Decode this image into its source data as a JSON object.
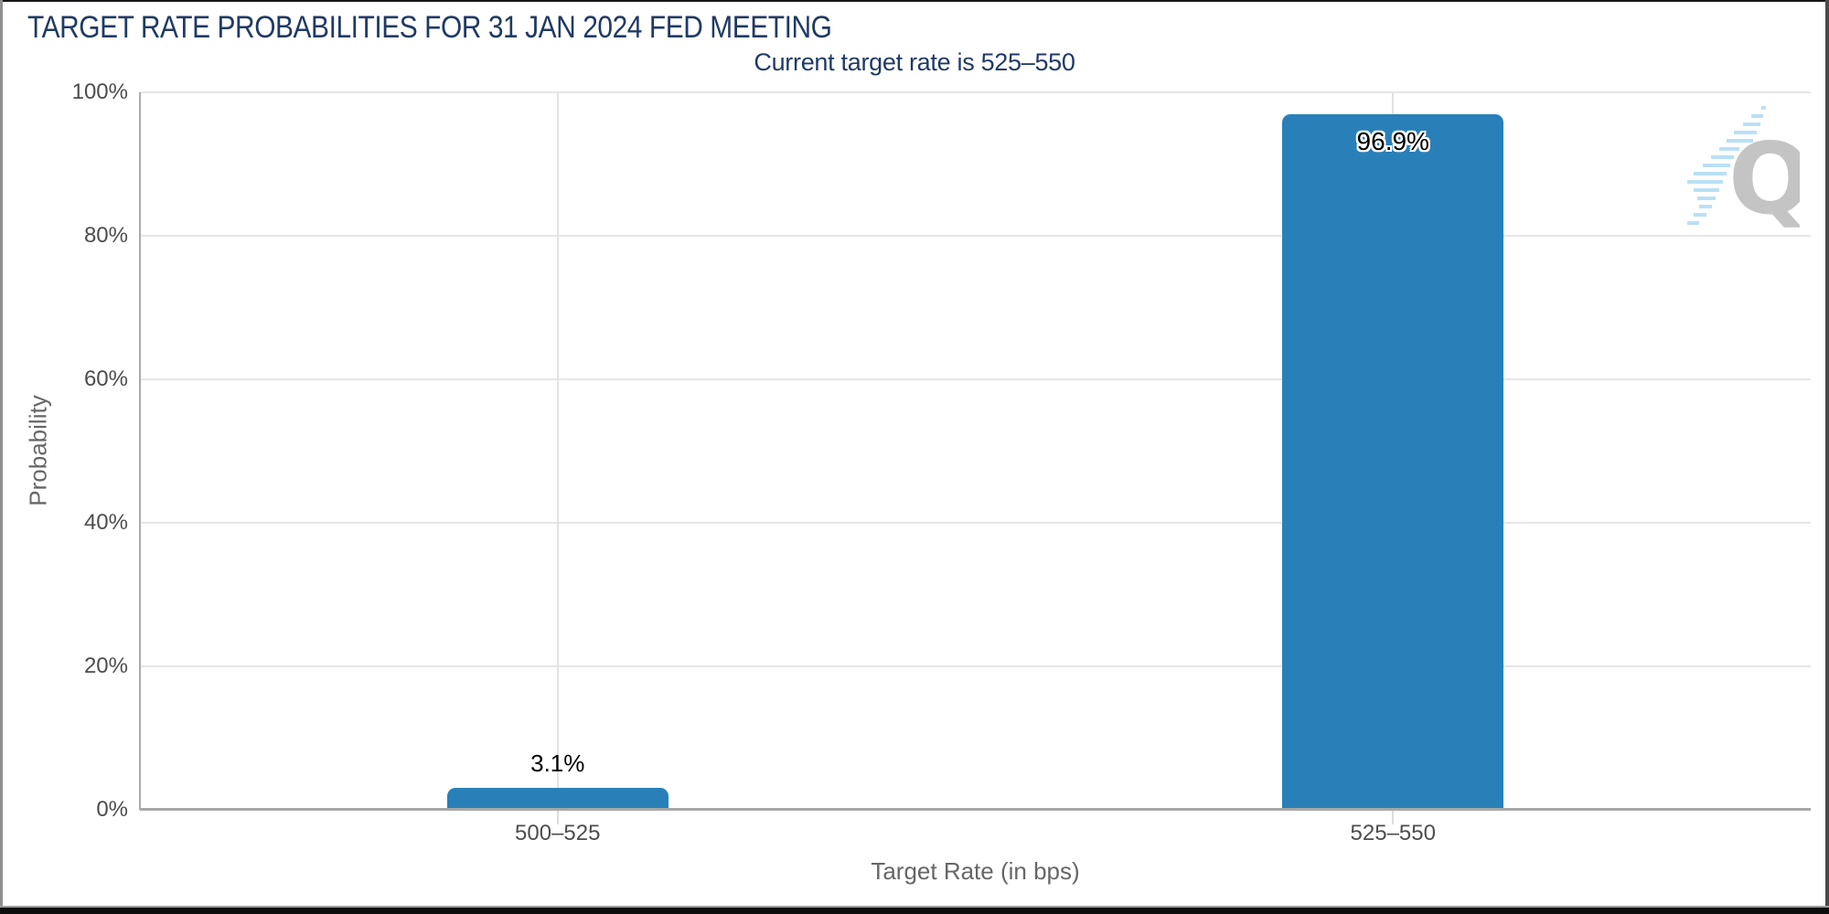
{
  "header": {
    "title": "TARGET RATE PROBABILITIES FOR 31 JAN 2024 FED MEETING",
    "subtitle": "Current target rate is 525–550"
  },
  "watermark": {
    "letter": "Q"
  },
  "colors": {
    "bar": "#2980b9",
    "title_text": "#203a64",
    "gridline": "#e6e6e6",
    "axis_line": "#a7a7a7",
    "tick_label": "#4d4d4d",
    "axis_title": "#666666",
    "watermark_gray": "#c4c4c4",
    "watermark_blue": "#b9e0f5"
  },
  "chart_data": {
    "type": "bar",
    "title": "TARGET RATE PROBABILITIES FOR 31 JAN 2024 FED MEETING",
    "subtitle": "Current target rate is 525–550",
    "categories": [
      "500–525",
      "525–550"
    ],
    "values": [
      3.1,
      96.9
    ],
    "value_labels": [
      "3.1%",
      "96.9%"
    ],
    "xlabel": "Target Rate (in bps)",
    "ylabel": "Probability",
    "ylim": [
      0,
      100
    ],
    "yticks": [
      0,
      20,
      40,
      60,
      80,
      100
    ],
    "ytick_labels": [
      "0%",
      "20%",
      "40%",
      "60%",
      "80%",
      "100%"
    ],
    "grid": true,
    "legend": "none"
  }
}
